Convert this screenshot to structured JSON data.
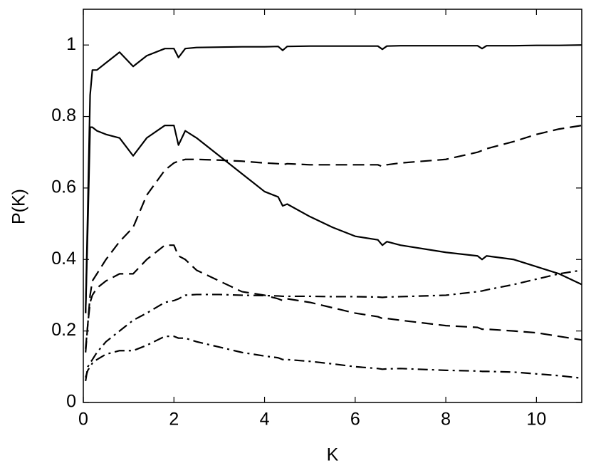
{
  "chart_data": {
    "type": "line",
    "xlabel": "K",
    "ylabel": "P(K)",
    "xlim": [
      0,
      11
    ],
    "ylim": [
      0,
      1.1
    ],
    "xticks": [
      0,
      2,
      4,
      6,
      8,
      10
    ],
    "yticks": [
      0,
      0.2,
      0.4,
      0.6,
      0.8,
      1
    ],
    "grid": false,
    "x": [
      0.05,
      0.1,
      0.15,
      0.2,
      0.3,
      0.5,
      0.8,
      1.1,
      1.4,
      1.8,
      2.0,
      2.1,
      2.25,
      2.5,
      3,
      3.5,
      4,
      4.3,
      4.4,
      4.5,
      5,
      5.5,
      6,
      6.5,
      6.6,
      6.7,
      7,
      8,
      8.7,
      8.8,
      8.9,
      9.5,
      10,
      10.5,
      11
    ],
    "series": [
      {
        "color": "#000000",
        "style": "solid",
        "values": [
          0.25,
          0.55,
          0.86,
          0.93,
          0.93,
          0.95,
          0.98,
          0.94,
          0.97,
          0.99,
          0.99,
          0.965,
          0.99,
          0.993,
          0.994,
          0.995,
          0.995,
          0.996,
          0.985,
          0.996,
          0.997,
          0.997,
          0.997,
          0.997,
          0.988,
          0.997,
          0.998,
          0.998,
          0.998,
          0.99,
          0.998,
          0.998,
          0.999,
          0.999,
          1.0
        ]
      },
      {
        "color": "#000000",
        "style": "solid",
        "values": [
          0.25,
          0.5,
          0.77,
          0.77,
          0.76,
          0.75,
          0.74,
          0.69,
          0.74,
          0.775,
          0.775,
          0.72,
          0.76,
          0.74,
          0.69,
          0.64,
          0.59,
          0.575,
          0.55,
          0.555,
          0.52,
          0.49,
          0.465,
          0.455,
          0.44,
          0.45,
          0.44,
          0.42,
          0.41,
          0.4,
          0.41,
          0.4,
          0.38,
          0.36,
          0.33
        ]
      },
      {
        "color": "#000000",
        "style": "dashed",
        "values": [
          0.15,
          0.22,
          0.3,
          0.34,
          0.36,
          0.4,
          0.45,
          0.49,
          0.58,
          0.65,
          0.67,
          0.675,
          0.68,
          0.68,
          0.678,
          0.675,
          0.67,
          0.668,
          0.665,
          0.668,
          0.665,
          0.665,
          0.665,
          0.665,
          0.66,
          0.665,
          0.67,
          0.68,
          0.7,
          0.705,
          0.71,
          0.73,
          0.75,
          0.765,
          0.775
        ]
      },
      {
        "color": "#000000",
        "style": "dashed",
        "values": [
          0.14,
          0.22,
          0.28,
          0.3,
          0.32,
          0.34,
          0.36,
          0.36,
          0.4,
          0.44,
          0.44,
          0.41,
          0.4,
          0.37,
          0.34,
          0.31,
          0.3,
          0.29,
          0.285,
          0.29,
          0.28,
          0.265,
          0.25,
          0.24,
          0.235,
          0.235,
          0.23,
          0.215,
          0.21,
          0.205,
          0.205,
          0.2,
          0.195,
          0.185,
          0.175
        ]
      },
      {
        "color": "#000000",
        "style": "dashdot",
        "values": [
          0.06,
          0.1,
          0.11,
          0.12,
          0.14,
          0.17,
          0.2,
          0.23,
          0.25,
          0.28,
          0.285,
          0.29,
          0.3,
          0.302,
          0.302,
          0.3,
          0.299,
          0.298,
          0.297,
          0.297,
          0.297,
          0.296,
          0.296,
          0.295,
          0.294,
          0.295,
          0.296,
          0.3,
          0.31,
          0.312,
          0.315,
          0.33,
          0.345,
          0.36,
          0.37
        ]
      },
      {
        "color": "#000000",
        "style": "dashdot",
        "values": [
          0.07,
          0.09,
          0.1,
          0.11,
          0.12,
          0.135,
          0.145,
          0.145,
          0.16,
          0.185,
          0.185,
          0.18,
          0.18,
          0.17,
          0.155,
          0.14,
          0.13,
          0.125,
          0.12,
          0.12,
          0.115,
          0.108,
          0.1,
          0.095,
          0.093,
          0.094,
          0.095,
          0.09,
          0.088,
          0.087,
          0.087,
          0.085,
          0.08,
          0.075,
          0.068
        ]
      }
    ]
  }
}
